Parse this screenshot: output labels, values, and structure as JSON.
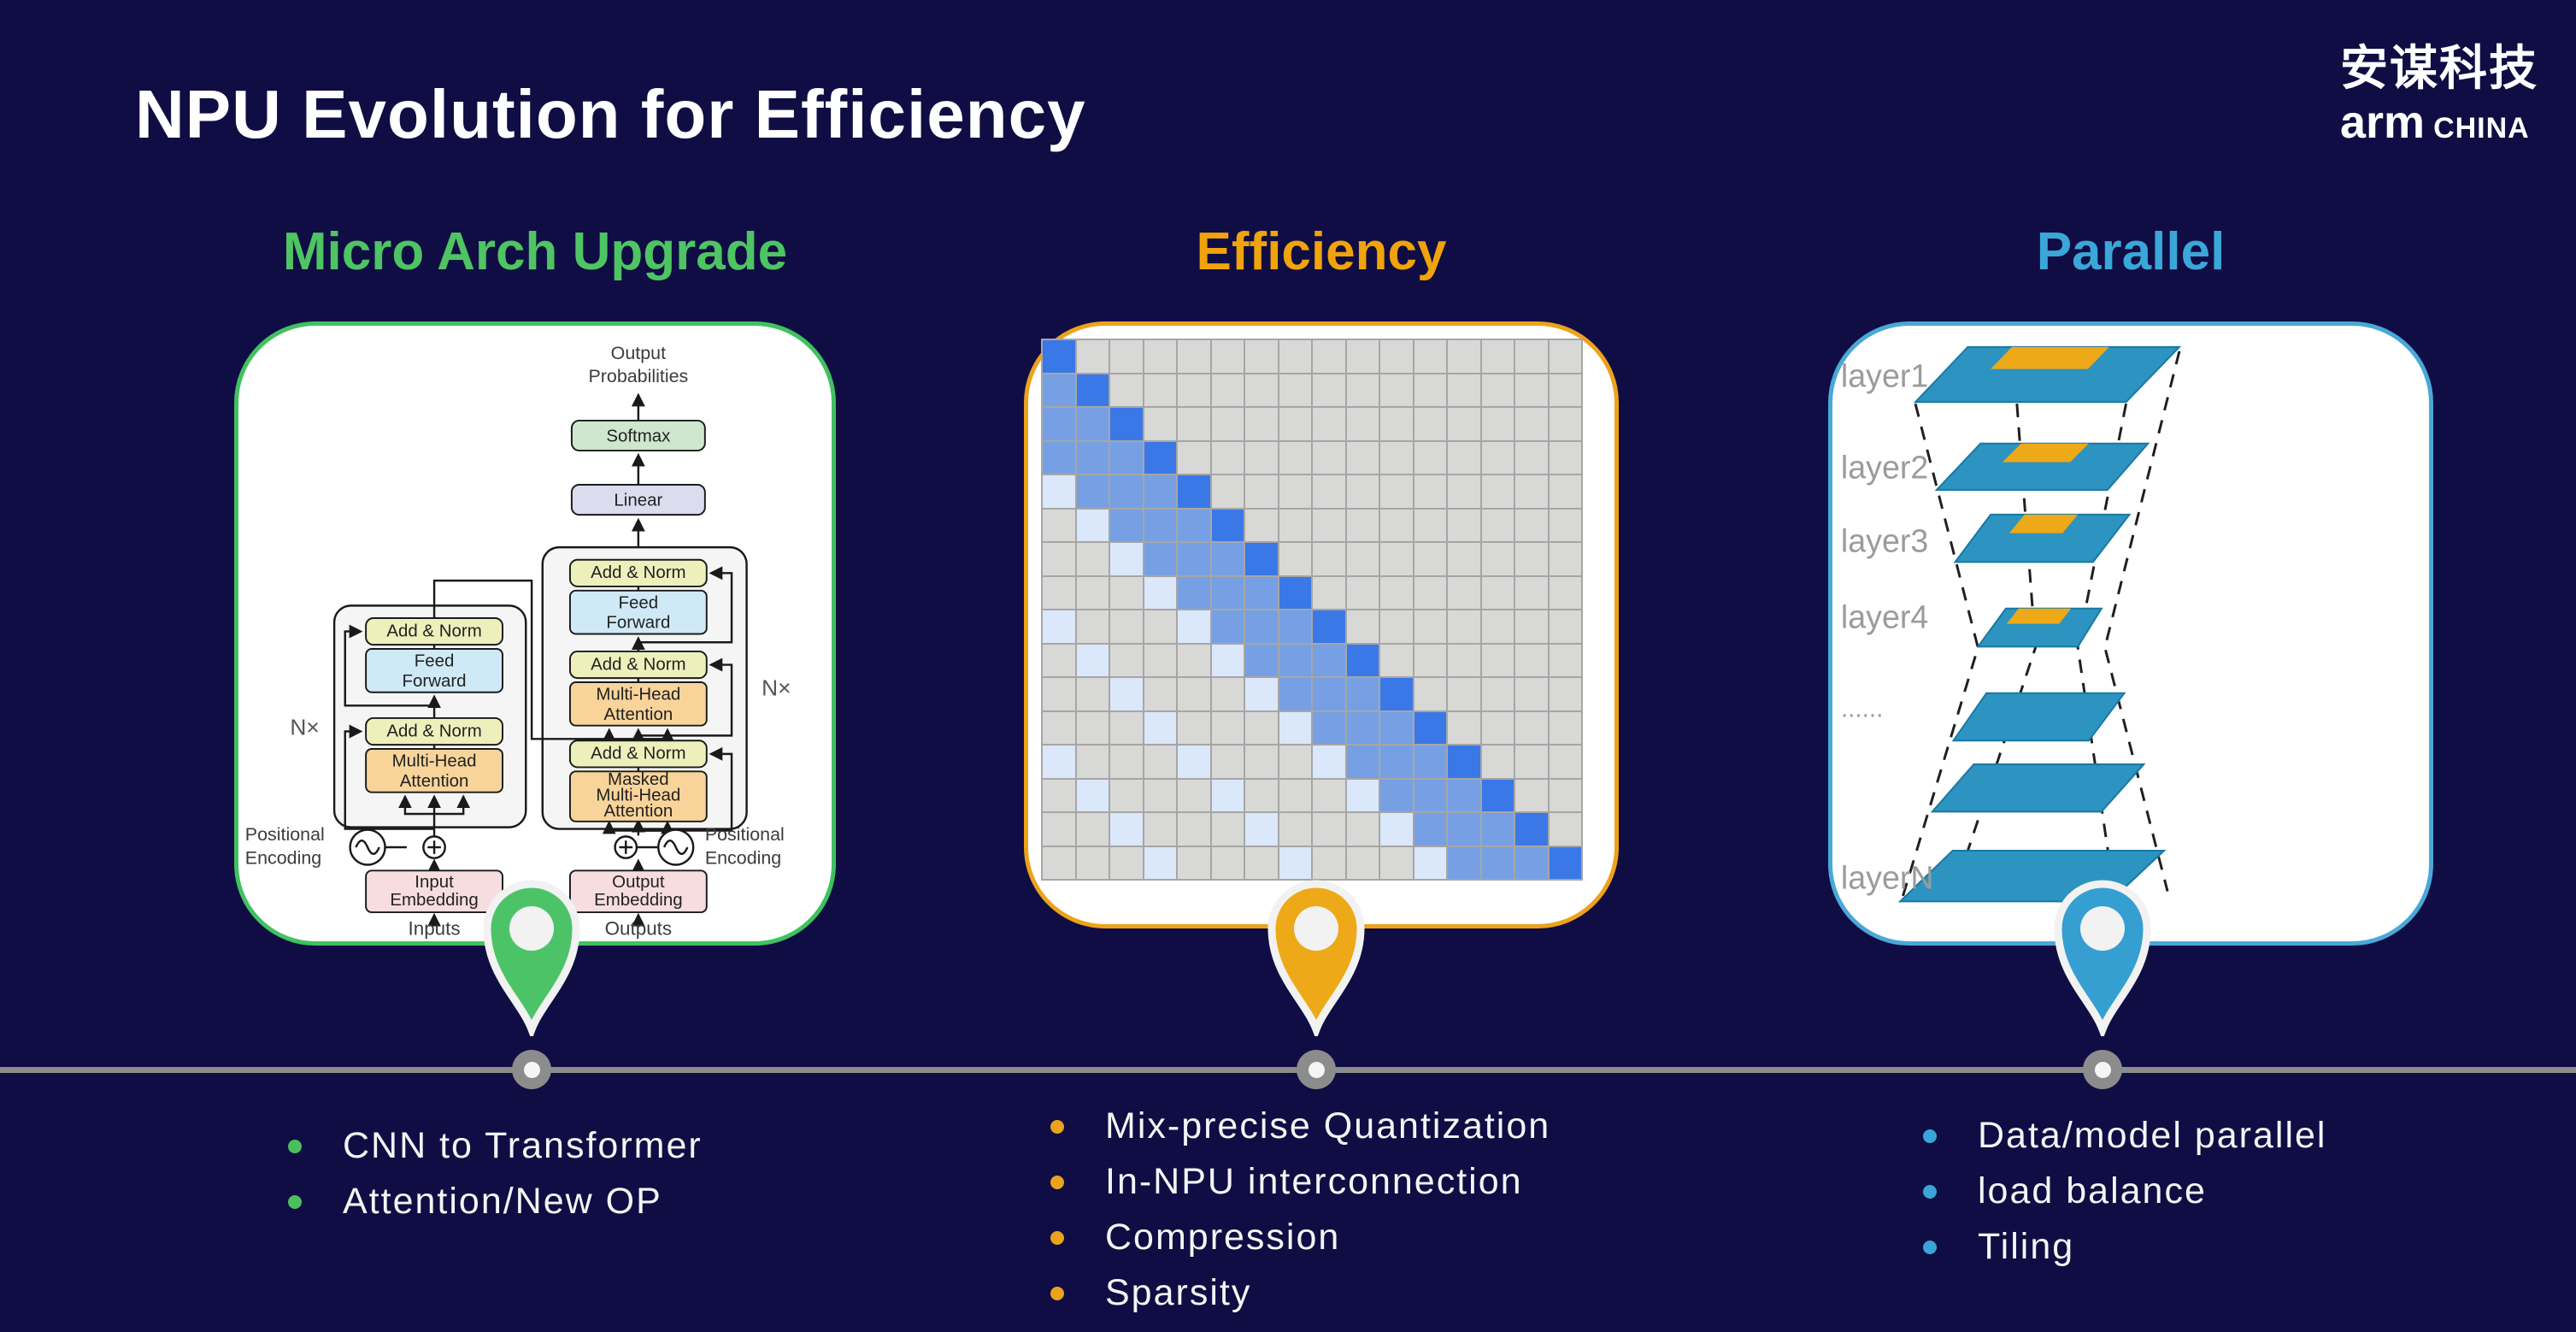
{
  "slide": {
    "title": "NPU Evolution for Efficiency",
    "background": "#100d44"
  },
  "logo": {
    "line1": "安谋科技",
    "line2_bold": "arm",
    "line2_rest": "CHINA"
  },
  "columns": [
    {
      "heading": "Micro Arch Upgrade",
      "heading_color": "#4ec463",
      "card_border": "#3fc25f",
      "pin_color": "#4dc368",
      "bullet_color": "#4abf5e",
      "bullets": [
        "CNN to Transformer",
        "Attention/New OP"
      ]
    },
    {
      "heading": "Efficiency",
      "heading_color": "#f0a30a",
      "card_border": "#eda21b",
      "pin_color": "#eda917",
      "bullet_color": "#e9a31c",
      "bullets": [
        "Mix-precise Quantization",
        "In-NPU interconnection",
        "Compression",
        "Sparsity"
      ]
    },
    {
      "heading": "Parallel",
      "heading_color": "#3ba6d8",
      "card_border": "#49a8d8",
      "pin_color": "#359fd1",
      "bullet_color": "#3ba4d6",
      "bullets": [
        "Data/model parallel",
        "load balance",
        "Tiling"
      ]
    }
  ],
  "transformer": {
    "labels": {
      "output_prob_l1": "Output",
      "output_prob_l2": "Probabilities",
      "softmax": "Softmax",
      "linear": "Linear",
      "add_norm": "Add & Norm",
      "ff_l1": "Feed",
      "ff_l2": "Forward",
      "mha_l1": "Multi-Head",
      "mha_l2": "Attention",
      "mmha_l1": "Masked",
      "mmha_l2": "Multi-Head",
      "mmha_l3": "Attention",
      "nx": "N×",
      "pos_l1": "Positional",
      "pos_l2": "Encoding",
      "in_emb_l1": "Input",
      "in_emb_l2": "Embedding",
      "out_emb_l1": "Output",
      "out_emb_l2": "Embedding",
      "inputs": "Inputs",
      "outputs": "Outputs"
    },
    "colors": {
      "softmax": "#cfe6cf",
      "linear": "#dcdcef",
      "add_norm": "#eef0bc",
      "feed_forward": "#cfe9f7",
      "attention": "#f8d49a",
      "embedding": "#f7dde0"
    }
  },
  "matrix": {
    "size": 16,
    "rows": [
      "bggggggggggggggg",
      "mbgggggggggggggg",
      "mmbggggggggggggg",
      "mmmbgggggggggggg",
      "lmmmbggggggggggg",
      "glmmmbgggggggggg",
      "gglmmmbggggggggg",
      "ggglmmmbgggggggg",
      "lggglmmmbggggggg",
      "glggglmmmbgggggg",
      "gglggglmmmbggggg",
      "ggglggglmmmbgggg",
      "lggglggglmmmbggg",
      "glggglggglmmmbgg",
      "gglggglggglmmmbg",
      "ggglggglggglmmmb"
    ],
    "colors": {
      "b": "#3b78e7",
      "m": "#76a0e3",
      "l": "#dbe7fa",
      "g": "#d8d8d6"
    }
  },
  "layers": {
    "labels": [
      "layer1",
      "layer2",
      "layer3",
      "layer4",
      "......",
      "layerN"
    ],
    "plane_color": "#2d93c0",
    "patch_color": "#eda917"
  },
  "timeline": {
    "line_color": "#8c8c8c"
  }
}
